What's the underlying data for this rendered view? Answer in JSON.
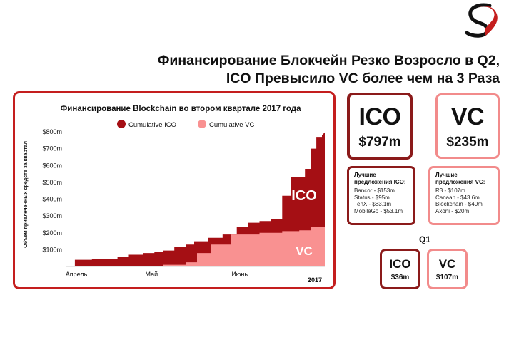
{
  "headline": {
    "line1": "Финансирование Блокчейн Резко Возросло в Q2,",
    "line2": "ICO Превысило VC более чем на 3 Раза"
  },
  "colors": {
    "ico": "#a50f14",
    "vc": "#f99191",
    "ico_border": "#8b1a1a",
    "vc_border": "#f28b8b",
    "panel_border": "#c41e1e"
  },
  "chart_data": {
    "type": "area",
    "title": "Финансирование Blockchain во втором квартале 2017 года",
    "ylabel": "Объём привлечённых средств за квартал",
    "xlabel": "",
    "year_label": "2017",
    "x_ticks": [
      "Апрель",
      "Май",
      "Июнь"
    ],
    "y_ticks": [
      "$800m",
      "$700m",
      "$600m",
      "$500m",
      "$400m",
      "$300m",
      "$200m",
      "$100m"
    ],
    "y_tick_values": [
      800,
      700,
      600,
      500,
      400,
      300,
      200,
      100
    ],
    "ylim": [
      0,
      800
    ],
    "x_range": [
      0,
      91
    ],
    "x_tick_days": [
      0,
      30,
      61
    ],
    "legend_position": "top",
    "grid": false,
    "series": [
      {
        "name": "Cumulative ICO",
        "stacked": "total",
        "area_label": "ICO",
        "points": [
          [
            0,
            0
          ],
          [
            3,
            0
          ],
          [
            3,
            40
          ],
          [
            9,
            40
          ],
          [
            9,
            45
          ],
          [
            18,
            45
          ],
          [
            18,
            55
          ],
          [
            22,
            55
          ],
          [
            22,
            70
          ],
          [
            27,
            70
          ],
          [
            27,
            80
          ],
          [
            31,
            80
          ],
          [
            31,
            85
          ],
          [
            34,
            85
          ],
          [
            34,
            95
          ],
          [
            38,
            95
          ],
          [
            38,
            115
          ],
          [
            42,
            115
          ],
          [
            42,
            130
          ],
          [
            45,
            130
          ],
          [
            45,
            150
          ],
          [
            50,
            150
          ],
          [
            50,
            170
          ],
          [
            55,
            170
          ],
          [
            55,
            190
          ],
          [
            60,
            190
          ],
          [
            60,
            235
          ],
          [
            64,
            235
          ],
          [
            64,
            260
          ],
          [
            68,
            260
          ],
          [
            68,
            270
          ],
          [
            72,
            270
          ],
          [
            72,
            280
          ],
          [
            76,
            280
          ],
          [
            76,
            420
          ],
          [
            79,
            420
          ],
          [
            79,
            530
          ],
          [
            84,
            530
          ],
          [
            84,
            580
          ],
          [
            86,
            580
          ],
          [
            86,
            700
          ],
          [
            88,
            700
          ],
          [
            88,
            770
          ],
          [
            90,
            770
          ],
          [
            90,
            780
          ],
          [
            91,
            797
          ]
        ]
      },
      {
        "name": "Cumulative VC",
        "stacked": "front",
        "area_label": "VC",
        "points": [
          [
            0,
            0
          ],
          [
            34,
            0
          ],
          [
            34,
            10
          ],
          [
            42,
            10
          ],
          [
            42,
            25
          ],
          [
            46,
            25
          ],
          [
            46,
            80
          ],
          [
            51,
            80
          ],
          [
            51,
            130
          ],
          [
            58,
            130
          ],
          [
            58,
            190
          ],
          [
            68,
            190
          ],
          [
            68,
            200
          ],
          [
            76,
            200
          ],
          [
            76,
            210
          ],
          [
            82,
            210
          ],
          [
            82,
            215
          ],
          [
            86,
            215
          ],
          [
            86,
            235
          ],
          [
            91,
            235
          ]
        ]
      }
    ]
  },
  "ico_total": {
    "label": "ICO",
    "amount": "$797m"
  },
  "vc_total": {
    "label": "VC",
    "amount": "$235m"
  },
  "ico_deals": {
    "title_line1": "Лучшие",
    "title_line2": "предложения ICO:",
    "items": [
      "Bancor - $153m",
      "Status - $95m",
      "TenX - $83.1m",
      "MobileGo - $53.1m"
    ]
  },
  "vc_deals": {
    "title_line1": "Лучшие",
    "title_line2": "предложения VC:",
    "items": [
      "R3 - $107m",
      "Canaan - $43.6m",
      "Blockchain - $40m",
      "Axoni - $20m"
    ]
  },
  "q1": {
    "label": "Q1",
    "ico": {
      "label": "ICO",
      "amount": "$36m"
    },
    "vc": {
      "label": "VC",
      "amount": "$107m"
    }
  }
}
